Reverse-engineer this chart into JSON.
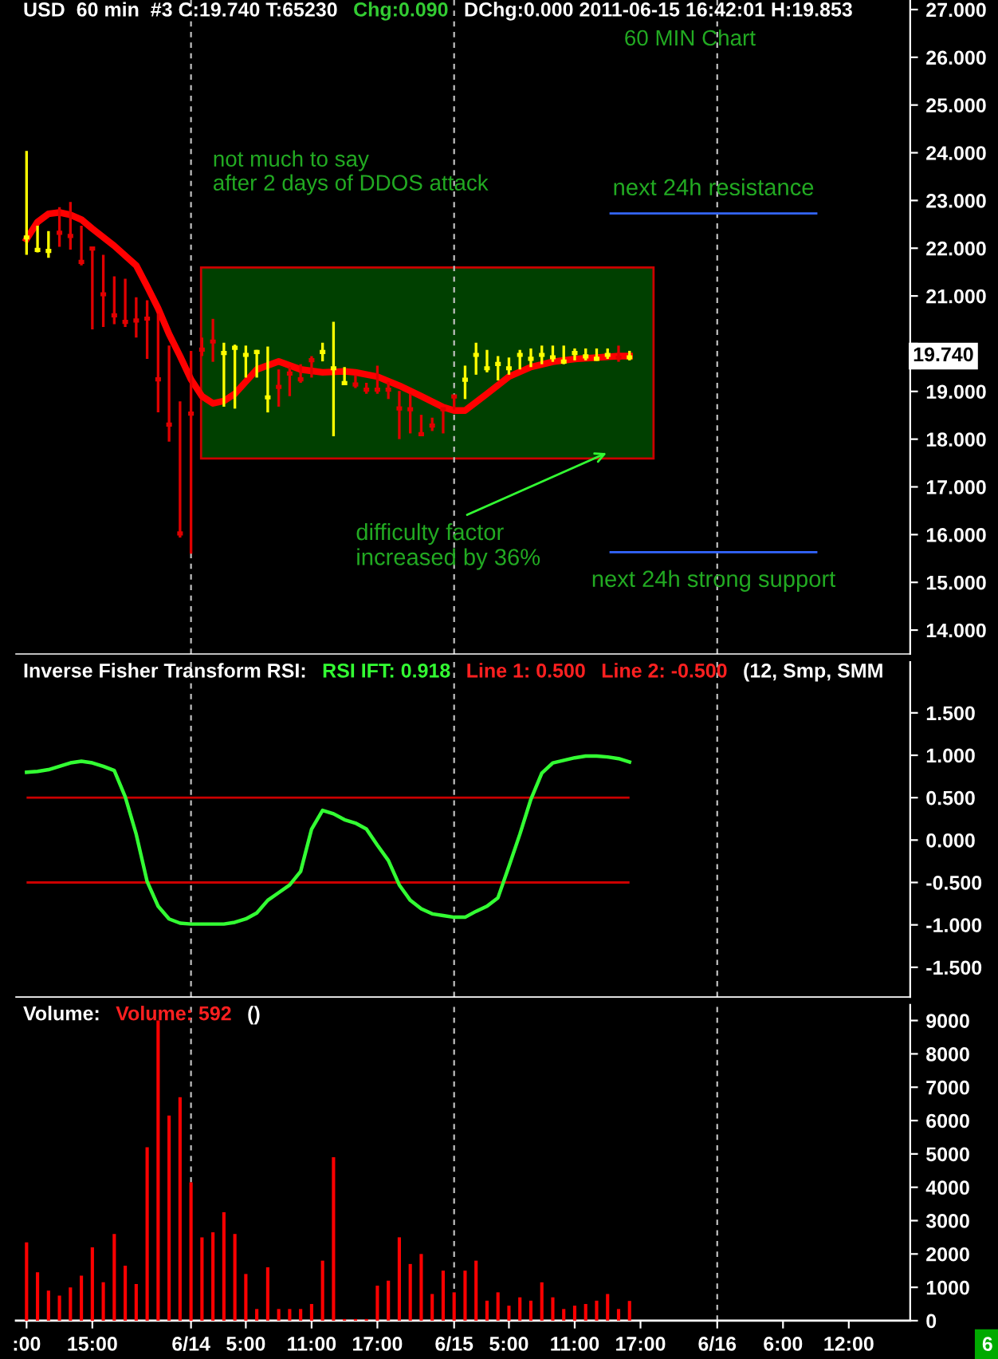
{
  "chart_data": [
    {
      "type": "candlestick",
      "title": "USD  60 min  #3 C:19.740 T:65230",
      "x": [
        "2011-06-13T09:00",
        "2011-06-13T10:00",
        "2011-06-13T11:00",
        "2011-06-13T12:00",
        "2011-06-13T13:00",
        "2011-06-13T14:00",
        "2011-06-13T15:00",
        "2011-06-13T16:00",
        "2011-06-13T17:00",
        "2011-06-13T18:00",
        "2011-06-13T19:00",
        "2011-06-13T20:00",
        "2011-06-13T21:00",
        "2011-06-13T22:00",
        "2011-06-13T23:00",
        "2011-06-14T00:00",
        "2011-06-14T01:00",
        "2011-06-14T02:00",
        "2011-06-14T03:00",
        "2011-06-14T04:00",
        "2011-06-14T05:00",
        "2011-06-14T06:00",
        "2011-06-14T07:00",
        "2011-06-14T08:00",
        "2011-06-14T09:00",
        "2011-06-14T10:00",
        "2011-06-14T11:00",
        "2011-06-14T12:00",
        "2011-06-14T13:00",
        "2011-06-14T14:00",
        "2011-06-14T15:00",
        "2011-06-14T16:00",
        "2011-06-14T17:00",
        "2011-06-14T18:00",
        "2011-06-14T19:00",
        "2011-06-14T20:00",
        "2011-06-14T21:00",
        "2011-06-14T22:00",
        "2011-06-14T23:00",
        "2011-06-15T00:00",
        "2011-06-15T01:00",
        "2011-06-15T02:00",
        "2011-06-15T03:00",
        "2011-06-15T04:00",
        "2011-06-15T05:00",
        "2011-06-15T06:00",
        "2011-06-15T07:00",
        "2011-06-15T08:00",
        "2011-06-15T09:00",
        "2011-06-15T10:00",
        "2011-06-15T11:00",
        "2011-06-15T12:00",
        "2011-06-15T13:00",
        "2011-06-15T14:00",
        "2011-06-15T15:00",
        "2011-06-15T16:00"
      ],
      "ohlc": [
        [
          22.2,
          24.04,
          21.86,
          22.25
        ],
        [
          21.94,
          22.47,
          21.91,
          21.99
        ],
        [
          21.92,
          22.36,
          21.8,
          21.97
        ],
        [
          22.35,
          22.86,
          22.03,
          22.3
        ],
        [
          22.28,
          22.97,
          21.97,
          22.23
        ],
        [
          21.74,
          22.47,
          21.64,
          21.69
        ],
        [
          22.02,
          22.03,
          20.3,
          21.97
        ],
        [
          21.06,
          21.86,
          20.35,
          21.01
        ],
        [
          20.62,
          21.41,
          20.41,
          20.57
        ],
        [
          20.48,
          21.36,
          20.35,
          20.43
        ],
        [
          20.51,
          20.97,
          20.13,
          20.46
        ],
        [
          20.55,
          20.91,
          19.68,
          20.5
        ],
        [
          19.28,
          20.63,
          18.56,
          19.23
        ],
        [
          18.33,
          19.96,
          17.95,
          18.28
        ],
        [
          16.05,
          18.79,
          15.94,
          16.0
        ],
        [
          18.56,
          19.85,
          15.6,
          18.51
        ],
        [
          19.9,
          20.13,
          19.74,
          19.85
        ],
        [
          20.07,
          20.52,
          19.62,
          20.02
        ],
        [
          19.78,
          20.02,
          18.68,
          19.83
        ],
        [
          19.89,
          19.98,
          18.64,
          19.94
        ],
        [
          19.74,
          19.96,
          19.29,
          19.79
        ],
        [
          19.8,
          19.87,
          19.29,
          19.85
        ],
        [
          18.85,
          19.94,
          18.56,
          18.9
        ],
        [
          19.12,
          19.46,
          18.68,
          19.07
        ],
        [
          19.4,
          19.51,
          18.9,
          19.35
        ],
        [
          19.28,
          19.57,
          19.18,
          19.23
        ],
        [
          19.68,
          19.74,
          19.29,
          19.63
        ],
        [
          19.8,
          20.02,
          19.63,
          19.85
        ],
        [
          19.46,
          20.46,
          18.06,
          19.51
        ],
        [
          19.15,
          19.51,
          19.14,
          19.2
        ],
        [
          19.17,
          19.34,
          19.07,
          19.12
        ],
        [
          19.06,
          19.18,
          18.95,
          19.01
        ],
        [
          19.06,
          19.54,
          18.95,
          19.01
        ],
        [
          19.06,
          19.2,
          18.84,
          19.01
        ],
        [
          18.67,
          19.01,
          18.0,
          18.62
        ],
        [
          18.65,
          18.95,
          18.12,
          18.6
        ],
        [
          18.13,
          18.51,
          18.06,
          18.08
        ],
        [
          18.31,
          18.45,
          18.17,
          18.26
        ],
        [
          18.65,
          18.66,
          18.12,
          18.6
        ],
        [
          18.92,
          18.93,
          18.62,
          18.87
        ],
        [
          19.22,
          19.54,
          18.84,
          19.27
        ],
        [
          19.74,
          20.02,
          19.35,
          19.79
        ],
        [
          19.46,
          19.87,
          19.4,
          19.51
        ],
        [
          19.55,
          19.74,
          19.23,
          19.6
        ],
        [
          19.46,
          19.71,
          19.35,
          19.51
        ],
        [
          19.74,
          19.87,
          19.46,
          19.79
        ],
        [
          19.66,
          19.9,
          19.51,
          19.71
        ],
        [
          19.74,
          19.96,
          19.57,
          19.79
        ],
        [
          19.69,
          19.96,
          19.62,
          19.74
        ],
        [
          19.6,
          19.96,
          19.57,
          19.65
        ],
        [
          19.78,
          19.9,
          19.65,
          19.83
        ],
        [
          19.71,
          19.9,
          19.65,
          19.76
        ],
        [
          19.66,
          19.9,
          19.64,
          19.71
        ],
        [
          19.74,
          19.9,
          19.68,
          19.79
        ],
        [
          19.73,
          19.96,
          19.62,
          19.68
        ],
        [
          19.69,
          19.85,
          19.65,
          19.74
        ]
      ],
      "series": [
        {
          "type": "line",
          "color": "#ff0000",
          "x": [
            "2011-06-13T09:00",
            "2011-06-13T10:00",
            "2011-06-13T11:00",
            "2011-06-13T12:00",
            "2011-06-13T13:00",
            "2011-06-13T14:00",
            "2011-06-13T15:00",
            "2011-06-13T17:00",
            "2011-06-13T19:00",
            "2011-06-13T20:00",
            "2011-06-13T21:00",
            "2011-06-13T22:00",
            "2011-06-13T23:00",
            "2011-06-14T00:00",
            "2011-06-14T01:00",
            "2011-06-14T02:00",
            "2011-06-14T03:00",
            "2011-06-14T04:00",
            "2011-06-14T06:00",
            "2011-06-14T08:00",
            "2011-06-14T10:00",
            "2011-06-14T12:00",
            "2011-06-14T14:00",
            "2011-06-14T15:00",
            "2011-06-14T17:00",
            "2011-06-14T19:00",
            "2011-06-14T21:00",
            "2011-06-14T23:00",
            "2011-06-15T00:00",
            "2011-06-15T01:00",
            "2011-06-15T03:00",
            "2011-06-15T05:00",
            "2011-06-15T07:00",
            "2011-06-15T09:00",
            "2011-06-15T11:00",
            "2011-06-15T13:00",
            "2011-06-15T15:00",
            "2011-06-15T16:00"
          ],
          "values": [
            22.19,
            22.55,
            22.72,
            22.75,
            22.7,
            22.6,
            22.41,
            22.05,
            21.64,
            21.2,
            20.74,
            20.2,
            19.74,
            19.25,
            18.9,
            18.75,
            18.8,
            18.95,
            19.46,
            19.63,
            19.46,
            19.4,
            19.42,
            19.4,
            19.31,
            19.12,
            18.9,
            18.67,
            18.6,
            18.6,
            18.95,
            19.31,
            19.51,
            19.62,
            19.68,
            19.71,
            19.74,
            19.74
          ]
        }
      ],
      "xlim": [
        "2011-06-13T08:02",
        "2011-06-16T17:36"
      ],
      "ylim": [
        13.5,
        27.2
      ],
      "yticks": [
        {
          "value": 14,
          "label": "14.000"
        },
        {
          "value": 15,
          "label": "15.000"
        },
        {
          "value": 16,
          "label": "16.000"
        },
        {
          "value": 17,
          "label": "17.000"
        },
        {
          "value": 18,
          "label": "18.000"
        },
        {
          "value": 19,
          "label": "19.000"
        },
        {
          "value": 20,
          "label": null
        },
        {
          "value": 21,
          "label": "21.000"
        },
        {
          "value": 22,
          "label": "22.000"
        },
        {
          "value": 23,
          "label": "23.000"
        },
        {
          "value": 24,
          "label": "24.000"
        },
        {
          "value": 25,
          "label": "25.000"
        },
        {
          "value": 26,
          "label": "26.000"
        },
        {
          "value": 27,
          "label": "27.000"
        }
      ],
      "tick_labels": "y",
      "ref_lines": [
        {
          "axis": "x",
          "value": "2011-06-14T00:00",
          "color": "#c0c0c0",
          "line_style": "dashed"
        },
        {
          "axis": "x",
          "value": "2011-06-15T00:00",
          "color": "#c0c0c0",
          "line_style": "dashed"
        },
        {
          "axis": "x",
          "value": "2011-06-16T00:00",
          "color": "#c0c0c0",
          "line_style": "dashed"
        },
        {
          "axis": "y",
          "value": 22.73,
          "label": "next 24h resistance",
          "color": "#3366ff"
        },
        {
          "axis": "y",
          "value": 15.63,
          "label": "next 24h strong support",
          "color": "#3366ff"
        }
      ],
      "annotations": [
        "Chg:0.090",
        "DChg:0.000 2011-06-15 16:42:01 H:19.853",
        "60 MIN Chart",
        "not much to say\nafter 2 days of DDOS attack",
        "difficulty factor\nincreased by 36%",
        "19.740"
      ]
    },
    {
      "type": "line",
      "title": "Inverse Fisher Transform RSI:",
      "x": [
        "2011-06-13T09:00",
        "2011-06-13T10:00",
        "2011-06-13T11:00",
        "2011-06-13T12:00",
        "2011-06-13T13:00",
        "2011-06-13T14:00",
        "2011-06-13T15:00",
        "2011-06-13T16:00",
        "2011-06-13T17:00",
        "2011-06-13T18:00",
        "2011-06-13T19:00",
        "2011-06-13T20:00",
        "2011-06-13T21:00",
        "2011-06-13T22:00",
        "2011-06-13T23:00",
        "2011-06-14T00:00",
        "2011-06-14T01:00",
        "2011-06-14T02:00",
        "2011-06-14T03:00",
        "2011-06-14T04:00",
        "2011-06-14T05:00",
        "2011-06-14T06:00",
        "2011-06-14T07:00",
        "2011-06-14T08:00",
        "2011-06-14T09:00",
        "2011-06-14T10:00",
        "2011-06-14T11:00",
        "2011-06-14T12:00",
        "2011-06-14T13:00",
        "2011-06-14T14:00",
        "2011-06-14T15:00",
        "2011-06-14T16:00",
        "2011-06-14T17:00",
        "2011-06-14T18:00",
        "2011-06-14T19:00",
        "2011-06-14T20:00",
        "2011-06-14T21:00",
        "2011-06-14T22:00",
        "2011-06-14T23:00",
        "2011-06-15T00:00",
        "2011-06-15T01:00",
        "2011-06-15T02:00",
        "2011-06-15T03:00",
        "2011-06-15T04:00",
        "2011-06-15T05:00",
        "2011-06-15T06:00",
        "2011-06-15T07:00",
        "2011-06-15T08:00",
        "2011-06-15T09:00",
        "2011-06-15T10:00",
        "2011-06-15T11:00",
        "2011-06-15T12:00",
        "2011-06-15T13:00",
        "2011-06-15T14:00",
        "2011-06-15T15:00",
        "2011-06-15T16:00"
      ],
      "series": [
        {
          "color": "#33ff33",
          "values": [
            0.8,
            0.81,
            0.83,
            0.87,
            0.91,
            0.93,
            0.91,
            0.87,
            0.82,
            0.51,
            0.07,
            -0.49,
            -0.78,
            -0.93,
            -0.98,
            -0.99,
            -0.99,
            -0.99,
            -0.99,
            -0.97,
            -0.93,
            -0.86,
            -0.71,
            -0.62,
            -0.53,
            -0.37,
            0.13,
            0.35,
            0.31,
            0.24,
            0.2,
            0.13,
            -0.06,
            -0.24,
            -0.53,
            -0.71,
            -0.81,
            -0.87,
            -0.89,
            -0.91,
            -0.91,
            -0.84,
            -0.78,
            -0.68,
            -0.31,
            0.07,
            0.48,
            0.79,
            0.91,
            0.94,
            0.97,
            0.99,
            0.99,
            0.98,
            0.96,
            0.92
          ]
        }
      ],
      "xlim": [
        "2011-06-13T08:02",
        "2011-06-16T17:36"
      ],
      "ylim": [
        -1.85,
        2.1
      ],
      "yticks": [
        {
          "value": -1.5,
          "label": "-1.500"
        },
        {
          "value": -1,
          "label": "-1.000"
        },
        {
          "value": -0.5,
          "label": "-0.500"
        },
        {
          "value": 0,
          "label": "0.000"
        },
        {
          "value": 0.5,
          "label": "0.500"
        },
        {
          "value": 1,
          "label": "1.000"
        },
        {
          "value": 1.5,
          "label": "1.500"
        }
      ],
      "tick_labels": "y",
      "ref_lines": [
        {
          "axis": "y",
          "value": 0.5,
          "color": "#cc0000"
        },
        {
          "axis": "y",
          "value": -0.5,
          "color": "#cc0000"
        },
        {
          "axis": "x",
          "value": "2011-06-14T00:00",
          "color": "#c0c0c0",
          "line_style": "dashed"
        },
        {
          "axis": "x",
          "value": "2011-06-15T00:00",
          "color": "#c0c0c0",
          "line_style": "dashed"
        },
        {
          "axis": "x",
          "value": "2011-06-16T00:00",
          "color": "#c0c0c0",
          "line_style": "dashed"
        }
      ],
      "annotations": [
        "RSI IFT: 0.918",
        "Line 1: 0.500",
        "Line 2: -0.500",
        "(12, Smp, SMM"
      ]
    },
    {
      "type": "bar",
      "title": "Volume:",
      "x": [
        "2011-06-13T09:00",
        "2011-06-13T10:00",
        "2011-06-13T11:00",
        "2011-06-13T12:00",
        "2011-06-13T13:00",
        "2011-06-13T14:00",
        "2011-06-13T15:00",
        "2011-06-13T16:00",
        "2011-06-13T17:00",
        "2011-06-13T18:00",
        "2011-06-13T19:00",
        "2011-06-13T20:00",
        "2011-06-13T21:00",
        "2011-06-13T22:00",
        "2011-06-13T23:00",
        "2011-06-14T00:00",
        "2011-06-14T01:00",
        "2011-06-14T02:00",
        "2011-06-14T03:00",
        "2011-06-14T04:00",
        "2011-06-14T05:00",
        "2011-06-14T06:00",
        "2011-06-14T07:00",
        "2011-06-14T08:00",
        "2011-06-14T09:00",
        "2011-06-14T10:00",
        "2011-06-14T11:00",
        "2011-06-14T12:00",
        "2011-06-14T13:00",
        "2011-06-14T14:00",
        "2011-06-14T15:00",
        "2011-06-14T16:00",
        "2011-06-14T17:00",
        "2011-06-14T18:00",
        "2011-06-14T19:00",
        "2011-06-14T20:00",
        "2011-06-14T21:00",
        "2011-06-14T22:00",
        "2011-06-14T23:00",
        "2011-06-15T00:00",
        "2011-06-15T01:00",
        "2011-06-15T02:00",
        "2011-06-15T03:00",
        "2011-06-15T04:00",
        "2011-06-15T05:00",
        "2011-06-15T06:00",
        "2011-06-15T07:00",
        "2011-06-15T08:00",
        "2011-06-15T09:00",
        "2011-06-15T10:00",
        "2011-06-15T11:00",
        "2011-06-15T12:00",
        "2011-06-15T13:00",
        "2011-06-15T14:00",
        "2011-06-15T15:00",
        "2011-06-15T16:00"
      ],
      "series": [
        {
          "color": "#ff0000",
          "values": [
            2350,
            1450,
            900,
            750,
            1000,
            1350,
            2200,
            1150,
            2600,
            1650,
            1100,
            5200,
            9000,
            6150,
            6700,
            4150,
            2500,
            2650,
            3250,
            2600,
            1400,
            350,
            1600,
            350,
            350,
            350,
            500,
            1800,
            4900,
            50,
            50,
            50,
            1050,
            1200,
            2500,
            1700,
            2000,
            800,
            1500,
            850,
            1500,
            1800,
            600,
            850,
            450,
            700,
            600,
            1150,
            700,
            350,
            450,
            500,
            600,
            800,
            350,
            592
          ]
        }
      ],
      "xlim": [
        "2011-06-13T08:02",
        "2011-06-16T17:36"
      ],
      "xticks": [
        {
          "value": "2011-06-13T09:00",
          "label": ":00"
        },
        {
          "value": "2011-06-13T15:00",
          "label": "15:00"
        },
        {
          "value": "2011-06-14T00:00",
          "label": "6/14"
        },
        {
          "value": "2011-06-14T05:00",
          "label": "5:00"
        },
        {
          "value": "2011-06-14T11:00",
          "label": "11:00"
        },
        {
          "value": "2011-06-14T17:00",
          "label": "17:00"
        },
        {
          "value": "2011-06-15T00:00",
          "label": "6/15"
        },
        {
          "value": "2011-06-15T05:00",
          "label": "5:00"
        },
        {
          "value": "2011-06-15T11:00",
          "label": "11:00"
        },
        {
          "value": "2011-06-15T17:00",
          "label": "17:00"
        },
        {
          "value": "2011-06-16T00:00",
          "label": "6/16"
        },
        {
          "value": "2011-06-16T06:00",
          "label": "6:00"
        },
        {
          "value": "2011-06-16T12:00",
          "label": "12:00"
        }
      ],
      "ylim": [
        0,
        9470
      ],
      "yticks": [
        0,
        1000,
        2000,
        3000,
        4000,
        5000,
        6000,
        7000,
        8000,
        9000
      ],
      "ref_lines": [
        {
          "axis": "x",
          "value": "2011-06-14T00:00",
          "color": "#c0c0c0",
          "line_style": "dashed"
        },
        {
          "axis": "x",
          "value": "2011-06-15T00:00",
          "color": "#c0c0c0",
          "line_style": "dashed"
        },
        {
          "axis": "x",
          "value": "2011-06-16T00:00",
          "color": "#c0c0c0",
          "line_style": "dashed"
        }
      ],
      "annotations": [
        "Volume: 592",
        "()",
        "6"
      ]
    }
  ]
}
